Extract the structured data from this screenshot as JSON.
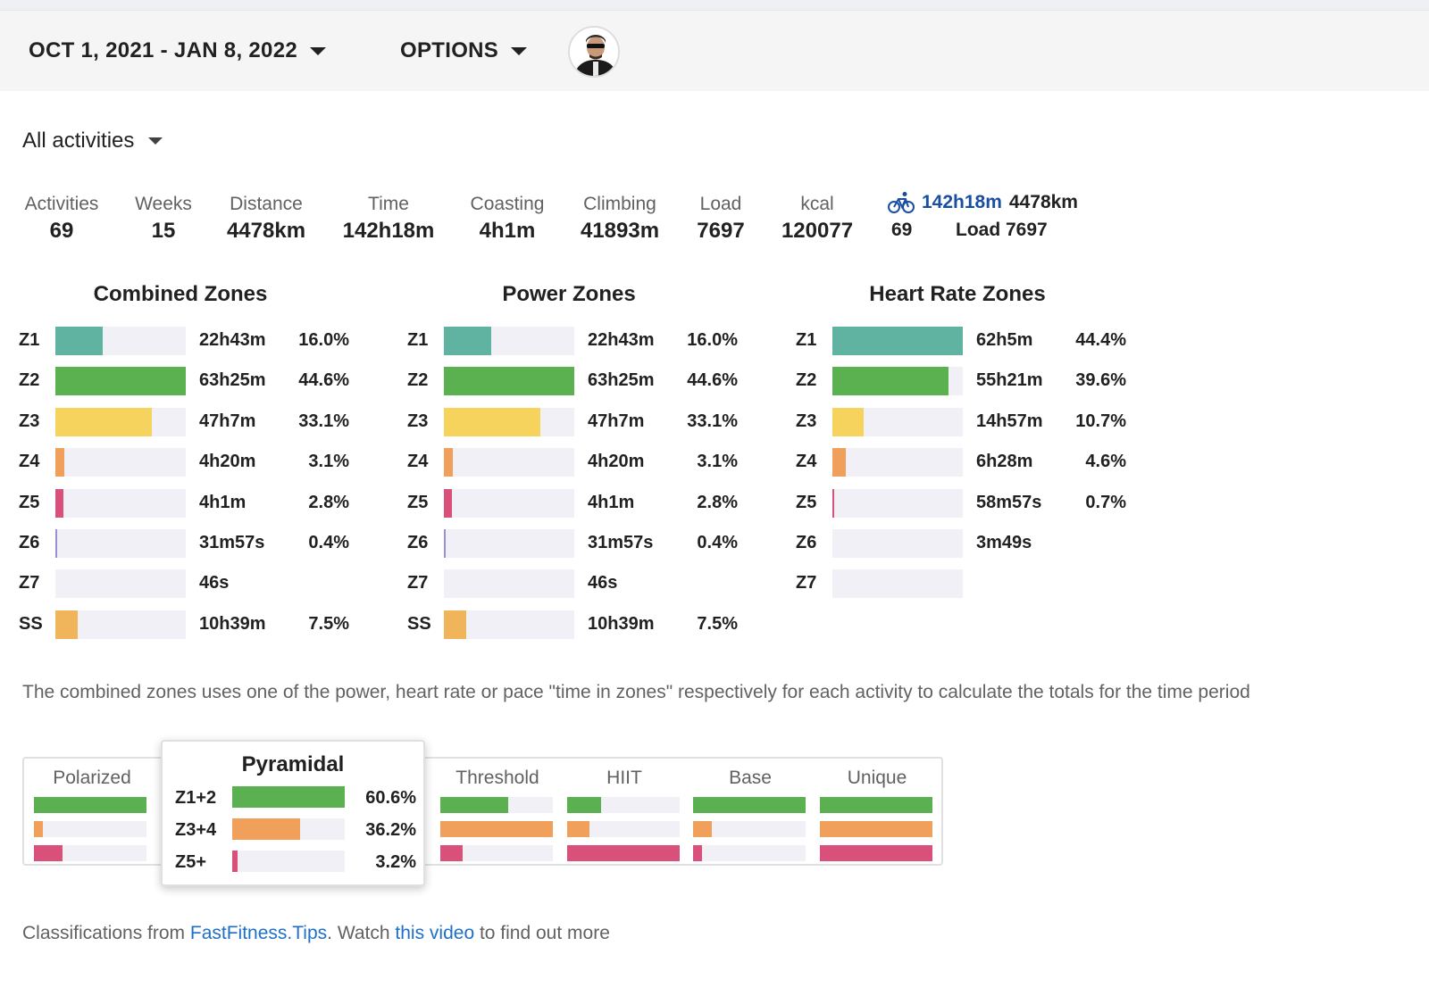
{
  "header": {
    "date_range": "OCT 1, 2021 - JAN 8, 2022",
    "options_label": "OPTIONS"
  },
  "filter": {
    "label": "All activities"
  },
  "stats": [
    {
      "label": "Activities",
      "value": "69"
    },
    {
      "label": "Weeks",
      "value": "15"
    },
    {
      "label": "Distance",
      "value": "4478km"
    },
    {
      "label": "Time",
      "value": "142h18m"
    },
    {
      "label": "Coasting",
      "value": "4h1m"
    },
    {
      "label": "Climbing",
      "value": "41893m"
    },
    {
      "label": "Load",
      "value": "7697"
    },
    {
      "label": "kcal",
      "value": "120077"
    }
  ],
  "bike_summary": {
    "icon": "bicycle-icon",
    "time": "142h18m",
    "distance": "4478km",
    "count": "69",
    "load": "Load 7697"
  },
  "zone_panels": [
    {
      "title": "Combined Zones",
      "rows": [
        {
          "zone": "Z1",
          "time": "22h43m",
          "pct": "16.0%",
          "fraction": 0.36,
          "color": "#5fb3a0"
        },
        {
          "zone": "Z2",
          "time": "63h25m",
          "pct": "44.6%",
          "fraction": 1.0,
          "color": "#5bb04f"
        },
        {
          "zone": "Z3",
          "time": "47h7m",
          "pct": "33.1%",
          "fraction": 0.74,
          "color": "#f5d35c"
        },
        {
          "zone": "Z4",
          "time": "4h20m",
          "pct": "3.1%",
          "fraction": 0.07,
          "color": "#f0a05a"
        },
        {
          "zone": "Z5",
          "time": "4h1m",
          "pct": "2.8%",
          "fraction": 0.06,
          "color": "#d9507a"
        },
        {
          "zone": "Z6",
          "time": "31m57s",
          "pct": "0.4%",
          "fraction": 0.01,
          "color": "#9a8fd4"
        },
        {
          "zone": "Z7",
          "time": "46s",
          "pct": "",
          "fraction": 0,
          "color": "#9a8fd4"
        },
        {
          "zone": "SS",
          "time": "10h39m",
          "pct": "7.5%",
          "fraction": 0.17,
          "color": "#f0b45a"
        }
      ]
    },
    {
      "title": "Power Zones",
      "rows": [
        {
          "zone": "Z1",
          "time": "22h43m",
          "pct": "16.0%",
          "fraction": 0.36,
          "color": "#5fb3a0"
        },
        {
          "zone": "Z2",
          "time": "63h25m",
          "pct": "44.6%",
          "fraction": 1.0,
          "color": "#5bb04f"
        },
        {
          "zone": "Z3",
          "time": "47h7m",
          "pct": "33.1%",
          "fraction": 0.74,
          "color": "#f5d35c"
        },
        {
          "zone": "Z4",
          "time": "4h20m",
          "pct": "3.1%",
          "fraction": 0.07,
          "color": "#f0a05a"
        },
        {
          "zone": "Z5",
          "time": "4h1m",
          "pct": "2.8%",
          "fraction": 0.06,
          "color": "#d9507a"
        },
        {
          "zone": "Z6",
          "time": "31m57s",
          "pct": "0.4%",
          "fraction": 0.01,
          "color": "#9a8fd4"
        },
        {
          "zone": "Z7",
          "time": "46s",
          "pct": "",
          "fraction": 0,
          "color": "#9a8fd4"
        },
        {
          "zone": "SS",
          "time": "10h39m",
          "pct": "7.5%",
          "fraction": 0.17,
          "color": "#f0b45a"
        }
      ]
    },
    {
      "title": "Heart Rate Zones",
      "rows": [
        {
          "zone": "Z1",
          "time": "62h5m",
          "pct": "44.4%",
          "fraction": 1.0,
          "color": "#5fb3a0"
        },
        {
          "zone": "Z2",
          "time": "55h21m",
          "pct": "39.6%",
          "fraction": 0.89,
          "color": "#5bb04f"
        },
        {
          "zone": "Z3",
          "time": "14h57m",
          "pct": "10.7%",
          "fraction": 0.24,
          "color": "#f5d35c"
        },
        {
          "zone": "Z4",
          "time": "6h28m",
          "pct": "4.6%",
          "fraction": 0.1,
          "color": "#f0a05a"
        },
        {
          "zone": "Z5",
          "time": "58m57s",
          "pct": "0.7%",
          "fraction": 0.015,
          "color": "#d9507a"
        },
        {
          "zone": "Z6",
          "time": "3m49s",
          "pct": "",
          "fraction": 0,
          "color": "#9a8fd4"
        },
        {
          "zone": "Z7",
          "time": "",
          "pct": "",
          "fraction": 0,
          "color": "#9a8fd4"
        }
      ]
    }
  ],
  "note": "The combined zones uses one of the power, heart rate or pace \"time in zones\" respectively for each activity to calculate the totals for the time period",
  "classifications": [
    {
      "name": "Polarized",
      "fractions": [
        1.0,
        0.08,
        0.25
      ]
    },
    {
      "name": "Threshold",
      "fractions": [
        0.6,
        1.0,
        0.2
      ]
    },
    {
      "name": "HIIT",
      "fractions": [
        0.3,
        0.2,
        1.0
      ]
    },
    {
      "name": "Base",
      "fractions": [
        1.0,
        0.17,
        0.08
      ]
    },
    {
      "name": "Unique",
      "fractions": [
        1.0,
        1.0,
        1.0
      ]
    }
  ],
  "class_colors": [
    "#5bb04f",
    "#f0a05a",
    "#d9507a"
  ],
  "popup": {
    "title": "Pyramidal",
    "rows": [
      {
        "label": "Z1+2",
        "pct": "60.6%",
        "fraction": 1.0,
        "color": "#5bb04f"
      },
      {
        "label": "Z3+4",
        "pct": "36.2%",
        "fraction": 0.6,
        "color": "#f0a05a"
      },
      {
        "label": "Z5+",
        "pct": "3.2%",
        "fraction": 0.05,
        "color": "#d9507a"
      }
    ]
  },
  "footer": {
    "prefix": "Classifications from ",
    "site_link": "FastFitness.Tips",
    "middle": ". Watch ",
    "video_link": "this video",
    "suffix": " to find out more"
  }
}
